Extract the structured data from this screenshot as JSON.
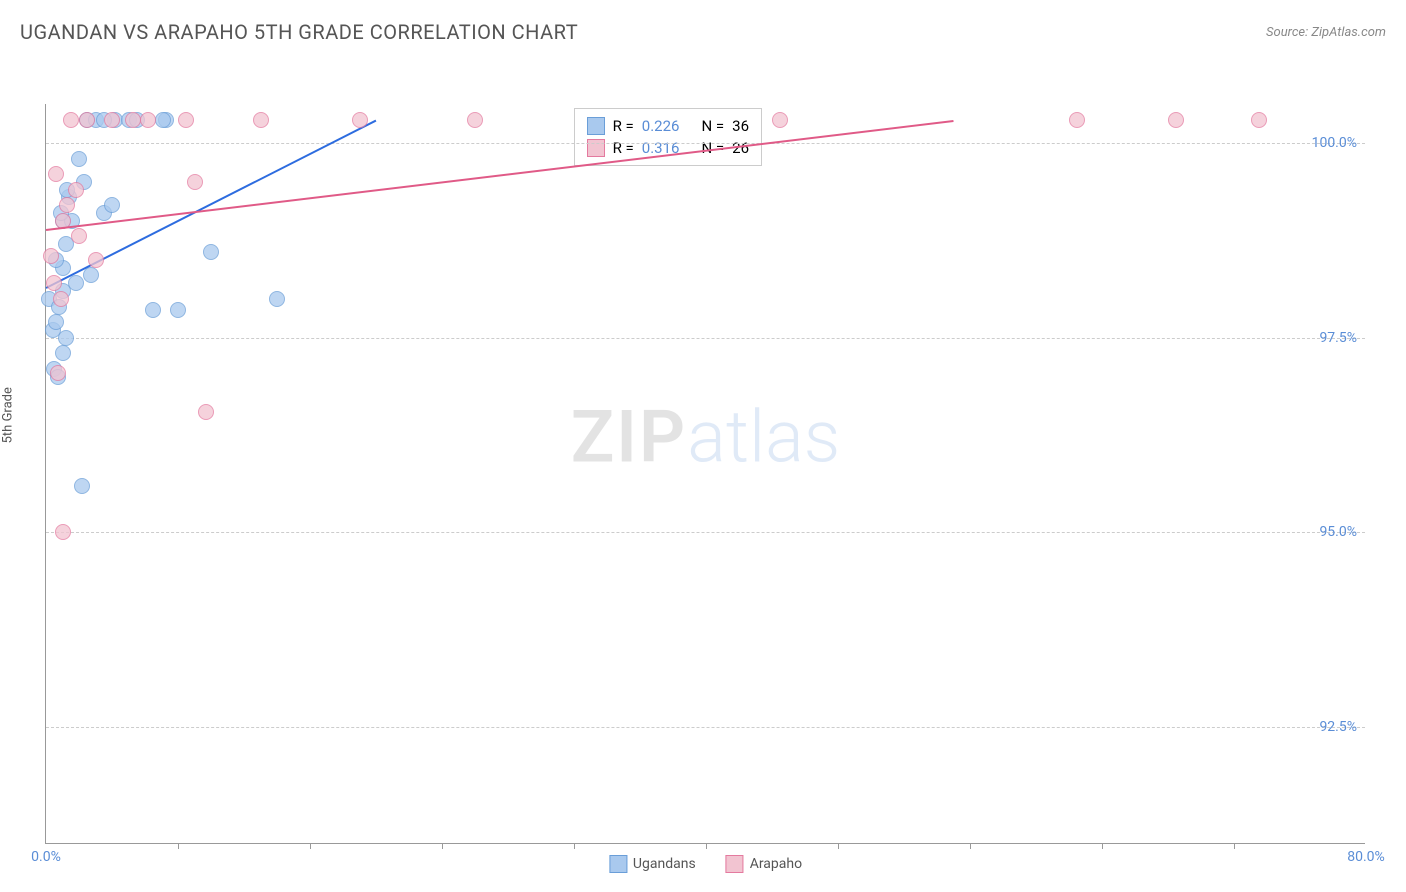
{
  "header": {
    "title": "UGANDAN VS ARAPAHO 5TH GRADE CORRELATION CHART",
    "source": "Source: ZipAtlas.com"
  },
  "chart": {
    "type": "scatter",
    "ylabel": "5th Grade",
    "xlim": [
      0,
      80
    ],
    "ylim": [
      91,
      100.5
    ],
    "xtick_labels": [
      "0.0%",
      "80.0%"
    ],
    "xtick_positions": [
      0,
      80
    ],
    "xtick_minor": [
      8,
      16,
      24,
      32,
      40,
      48,
      56,
      64,
      72
    ],
    "ytick_labels": [
      "92.5%",
      "95.0%",
      "97.5%",
      "100.0%"
    ],
    "ytick_positions": [
      92.5,
      95.0,
      97.5,
      100.0
    ],
    "grid_color": "#cccccc",
    "background_color": "#ffffff",
    "marker_size": 16,
    "watermark": {
      "zip": "ZIP",
      "atlas": "atlas"
    },
    "series": [
      {
        "name": "Ugandans",
        "fill": "#a9c9ee",
        "stroke": "#6a9ed8",
        "trend_color": "#2d6cdf",
        "R": "0.226",
        "N": "36",
        "trend": {
          "x1": 0,
          "y1": 98.15,
          "x2": 20,
          "y2": 100.3
        },
        "points": [
          [
            0.2,
            98.0
          ],
          [
            0.4,
            97.6
          ],
          [
            0.6,
            97.7
          ],
          [
            0.8,
            97.9
          ],
          [
            1.0,
            98.4
          ],
          [
            1.2,
            98.7
          ],
          [
            1.0,
            99.0
          ],
          [
            1.4,
            99.3
          ],
          [
            1.6,
            99.0
          ],
          [
            1.0,
            98.1
          ],
          [
            0.5,
            97.1
          ],
          [
            0.7,
            97.0
          ],
          [
            2.5,
            100.3
          ],
          [
            3.0,
            100.3
          ],
          [
            4.2,
            100.3
          ],
          [
            5.0,
            100.3
          ],
          [
            5.5,
            100.3
          ],
          [
            3.5,
            100.3
          ],
          [
            7.3,
            100.3
          ],
          [
            2.0,
            99.8
          ],
          [
            2.3,
            99.5
          ],
          [
            1.2,
            97.5
          ],
          [
            1.0,
            97.3
          ],
          [
            2.2,
            95.6
          ],
          [
            8.0,
            97.85
          ],
          [
            14.0,
            98.0
          ],
          [
            10.0,
            98.6
          ],
          [
            6.5,
            97.85
          ],
          [
            7.1,
            100.3
          ],
          [
            3.5,
            99.1
          ],
          [
            4.0,
            99.2
          ],
          [
            0.6,
            98.5
          ],
          [
            1.8,
            98.2
          ],
          [
            2.7,
            98.3
          ],
          [
            0.9,
            99.1
          ],
          [
            1.3,
            99.4
          ]
        ]
      },
      {
        "name": "Arapaho",
        "fill": "#f2c4d1",
        "stroke": "#e47a9f",
        "trend_color": "#e05a87",
        "R": "0.316",
        "N": "26",
        "trend": {
          "x1": 0,
          "y1": 98.9,
          "x2": 55,
          "y2": 100.3
        },
        "points": [
          [
            0.3,
            98.55
          ],
          [
            0.5,
            98.2
          ],
          [
            0.7,
            97.05
          ],
          [
            1.0,
            99.0
          ],
          [
            1.3,
            99.2
          ],
          [
            1.0,
            95.0
          ],
          [
            2.0,
            98.8
          ],
          [
            2.5,
            100.3
          ],
          [
            4.0,
            100.3
          ],
          [
            5.3,
            100.3
          ],
          [
            6.2,
            100.3
          ],
          [
            8.5,
            100.3
          ],
          [
            9.0,
            99.5
          ],
          [
            13.0,
            100.3
          ],
          [
            19.0,
            100.3
          ],
          [
            26.0,
            100.3
          ],
          [
            9.7,
            96.55
          ],
          [
            3.0,
            98.5
          ],
          [
            44.5,
            100.3
          ],
          [
            62.5,
            100.3
          ],
          [
            68.5,
            100.3
          ],
          [
            73.5,
            100.3
          ],
          [
            1.5,
            100.3
          ],
          [
            0.6,
            99.6
          ],
          [
            1.8,
            99.4
          ],
          [
            0.9,
            98.0
          ]
        ]
      }
    ],
    "bottom_legend": [
      {
        "label": "Ugandans",
        "fill": "#a9c9ee",
        "stroke": "#6a9ed8"
      },
      {
        "label": "Arapaho",
        "fill": "#f2c4d1",
        "stroke": "#e47a9f"
      }
    ]
  }
}
